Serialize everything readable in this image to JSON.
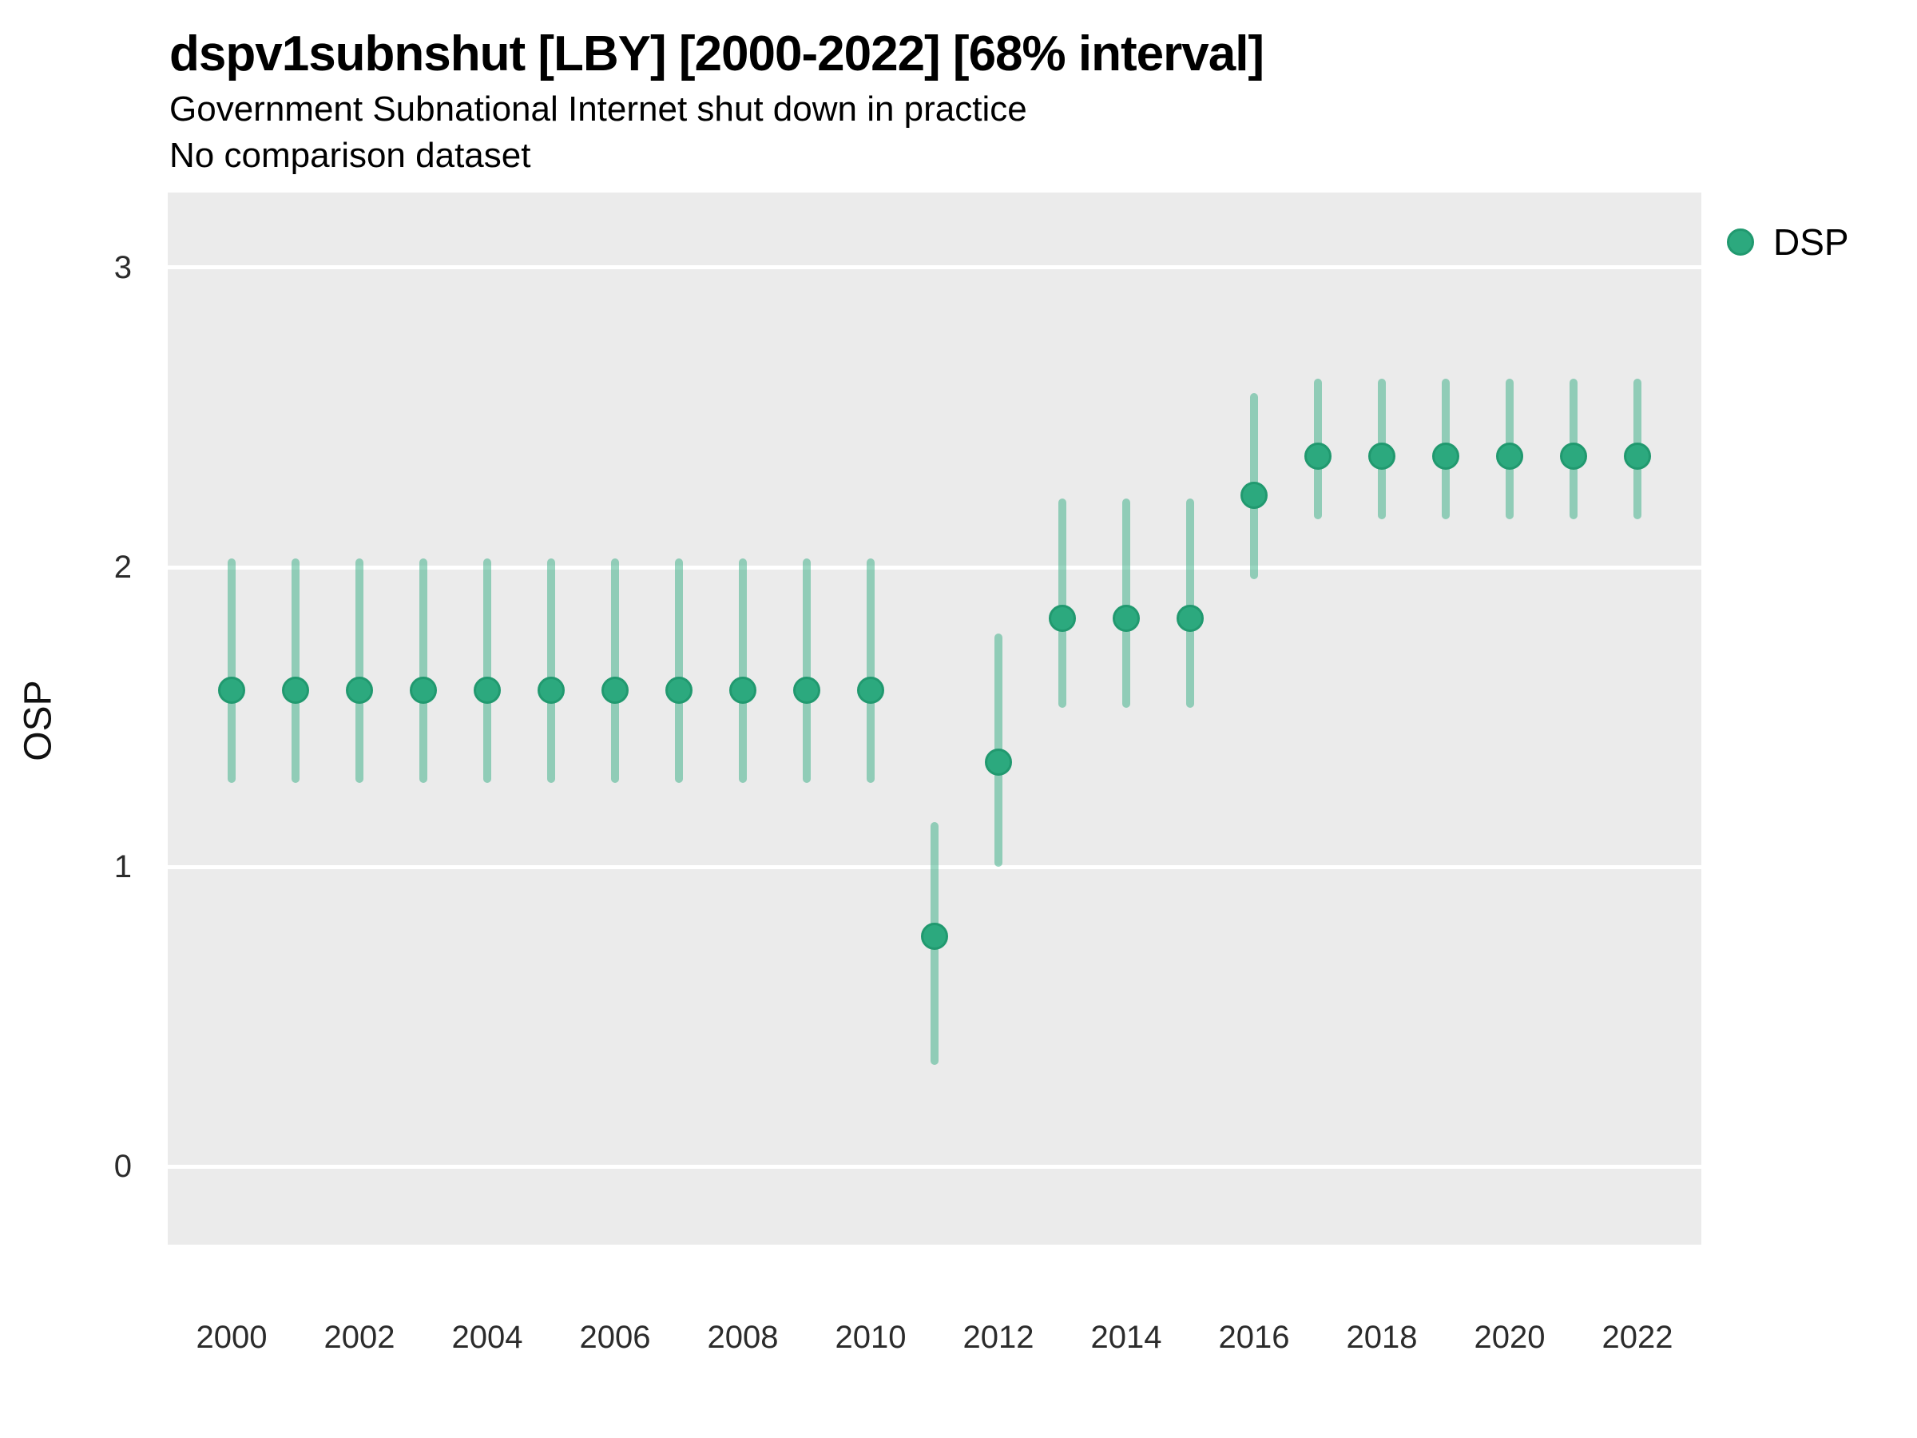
{
  "header": {
    "title": "dspv1subnshut [LBY] [2000-2022] [68% interval]",
    "subtitle": "Government Subnational Internet shut down in practice",
    "note": "No comparison dataset"
  },
  "axes": {
    "y_label": "OSP",
    "y_ticks": [
      0,
      1,
      2,
      3
    ],
    "x_ticks": [
      2000,
      2002,
      2004,
      2006,
      2008,
      2010,
      2012,
      2014,
      2016,
      2018,
      2020,
      2022
    ]
  },
  "legend": {
    "items": [
      {
        "label": "DSP"
      }
    ]
  },
  "colors": {
    "point_fill": "#2CA97E",
    "point_stroke": "#21996F",
    "interval": "rgba(44,169,126,0.48)",
    "panel_bg": "#EBEBEB",
    "gridline": "#FFFFFF"
  },
  "chart_data": {
    "type": "scatter",
    "title": "dspv1subnshut [LBY] [2000-2022] [68% interval]",
    "subtitle": "Government Subnational Internet shut down in practice",
    "note": "No comparison dataset",
    "xlabel": "",
    "ylabel": "OSP",
    "xlim": [
      1999,
      2023
    ],
    "ylim": [
      -0.26,
      3.25
    ],
    "grid": "horizontal-major",
    "legend_position": "right-top",
    "interval_level": "68%",
    "series": [
      {
        "name": "DSP",
        "x": [
          2000,
          2001,
          2002,
          2003,
          2004,
          2005,
          2006,
          2007,
          2008,
          2009,
          2010,
          2011,
          2012,
          2013,
          2014,
          2015,
          2016,
          2017,
          2018,
          2019,
          2020,
          2021,
          2022
        ],
        "est": [
          1.59,
          1.59,
          1.59,
          1.59,
          1.59,
          1.59,
          1.59,
          1.59,
          1.59,
          1.59,
          1.59,
          0.77,
          1.35,
          1.83,
          1.83,
          1.83,
          2.24,
          2.37,
          2.37,
          2.37,
          2.37,
          2.37,
          2.37
        ],
        "lo": [
          1.28,
          1.28,
          1.28,
          1.28,
          1.28,
          1.28,
          1.28,
          1.28,
          1.28,
          1.28,
          1.28,
          0.34,
          1.0,
          1.53,
          1.53,
          1.53,
          1.96,
          2.16,
          2.16,
          2.16,
          2.16,
          2.16,
          2.16
        ],
        "hi": [
          2.03,
          2.03,
          2.03,
          2.03,
          2.03,
          2.03,
          2.03,
          2.03,
          2.03,
          2.03,
          2.03,
          1.15,
          1.78,
          2.23,
          2.23,
          2.23,
          2.58,
          2.63,
          2.63,
          2.63,
          2.63,
          2.63,
          2.63
        ]
      }
    ]
  }
}
